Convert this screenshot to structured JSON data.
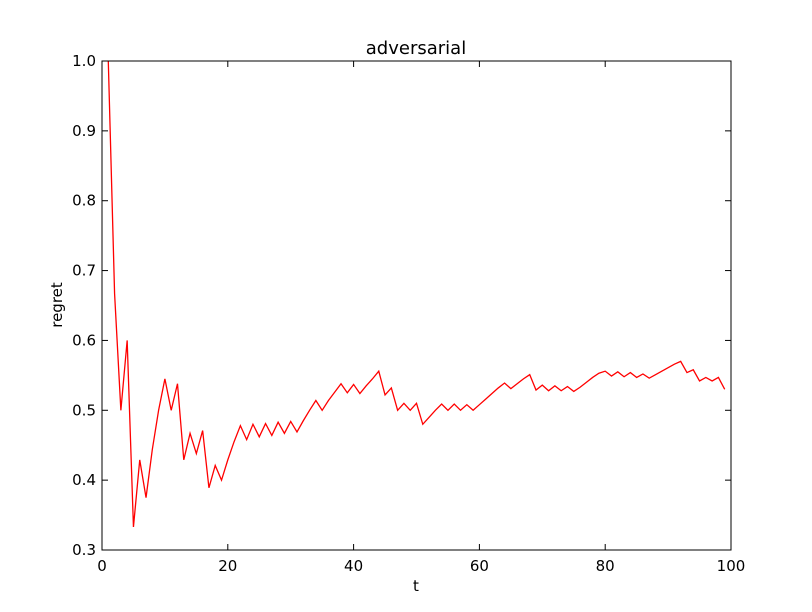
{
  "chart_data": {
    "type": "line",
    "title": "adversarial",
    "xlabel": "t",
    "ylabel": "regret",
    "xlim": [
      0,
      100
    ],
    "ylim": [
      0.3,
      1.0
    ],
    "xticks": [
      "0",
      "20",
      "40",
      "60",
      "80",
      "100"
    ],
    "yticks": [
      "0.3",
      "0.4",
      "0.5",
      "0.6",
      "0.7",
      "0.8",
      "0.9",
      "1.0"
    ],
    "grid": false,
    "legend": "none",
    "series": [
      {
        "color": "#ff0000",
        "x": [
          1,
          2,
          3,
          4,
          5,
          6,
          7,
          8,
          9,
          10,
          11,
          12,
          13,
          14,
          15,
          16,
          17,
          18,
          19,
          20,
          21,
          22,
          23,
          24,
          25,
          26,
          27,
          28,
          29,
          30,
          31,
          32,
          33,
          34,
          35,
          36,
          37,
          38,
          39,
          40,
          41,
          42,
          43,
          44,
          45,
          46,
          47,
          48,
          49,
          50,
          51,
          52,
          53,
          54,
          55,
          56,
          57,
          58,
          59,
          60,
          61,
          62,
          63,
          64,
          65,
          66,
          67,
          68,
          69,
          70,
          71,
          72,
          73,
          74,
          75,
          76,
          77,
          78,
          79,
          80,
          81,
          82,
          83,
          84,
          85,
          86,
          87,
          88,
          89,
          90,
          91,
          92,
          93,
          94,
          95,
          96,
          97,
          98,
          99
        ],
        "y": [
          1.0,
          0.667,
          0.5,
          0.6,
          0.333,
          0.429,
          0.375,
          0.444,
          0.5,
          0.545,
          0.5,
          0.538,
          0.429,
          0.467,
          0.438,
          0.471,
          0.389,
          0.421,
          0.4,
          0.429,
          0.455,
          0.478,
          0.458,
          0.48,
          0.462,
          0.481,
          0.464,
          0.483,
          0.467,
          0.484,
          0.469,
          0.485,
          0.5,
          0.514,
          0.5,
          0.514,
          0.526,
          0.538,
          0.525,
          0.537,
          0.524,
          0.535,
          0.545,
          0.556,
          0.522,
          0.532,
          0.5,
          0.51,
          0.5,
          0.51,
          0.48,
          0.49,
          0.5,
          0.509,
          0.5,
          0.509,
          0.5,
          0.508,
          0.5,
          0.508,
          0.516,
          0.524,
          0.532,
          0.539,
          0.531,
          0.538,
          0.545,
          0.551,
          0.529,
          0.536,
          0.528,
          0.535,
          0.528,
          0.534,
          0.527,
          0.533,
          0.54,
          0.547,
          0.553,
          0.556,
          0.549,
          0.555,
          0.548,
          0.554,
          0.547,
          0.552,
          0.546,
          0.551,
          0.556,
          0.561,
          0.566,
          0.57,
          0.554,
          0.558,
          0.542,
          0.547,
          0.542,
          0.547,
          0.53
        ]
      }
    ]
  }
}
